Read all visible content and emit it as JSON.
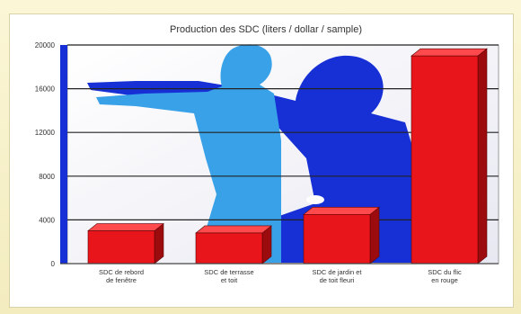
{
  "chart_data": {
    "type": "bar",
    "title": "Production des SDC (liters / dollar / sample)",
    "categories": [
      "SDC de rebord de fenêtre",
      "SDC de terrasse et toit",
      "SDC de jardin et de toit fleuri",
      "SDC du flic en rouge"
    ],
    "values": [
      3000,
      2800,
      4500,
      19000
    ],
    "ylim": [
      0,
      20000
    ],
    "yticks": [
      0,
      4000,
      8000,
      12000,
      16000,
      20000
    ],
    "ytick_labels": [
      "0",
      "4000",
      "8000",
      "12000",
      "16000",
      "20000"
    ],
    "grid": true,
    "bar_color": "#e8161a",
    "background_image": "blue-silhouettes-adult-and-child"
  }
}
